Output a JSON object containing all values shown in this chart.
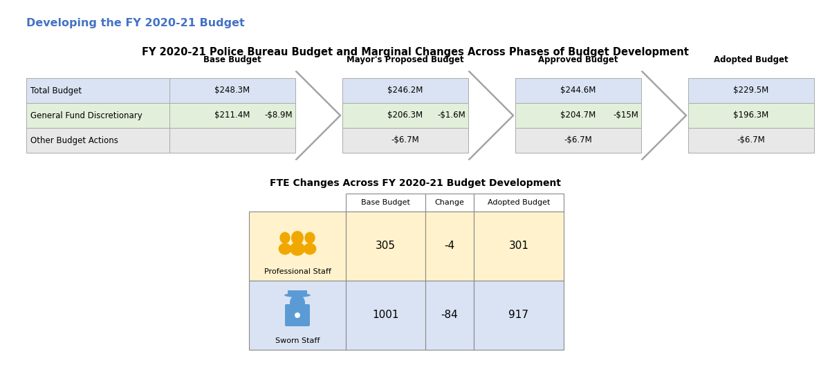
{
  "title": "Developing the FY 2020-21 Budget",
  "chart_title": "FY 2020-21 Police Bureau Budget and Marginal Changes Across Phases of Budget Development",
  "fte_title": "FTE Changes Across FY 2020-21 Budget Development",
  "title_color": "#4472C4",
  "background_color": "#FFFFFF",
  "phases": [
    {
      "label": "Base Budget",
      "total": "$248.3M",
      "general": "$211.4M",
      "other": ""
    },
    {
      "label": "Mayor's Proposed Budget",
      "total": "$246.2M",
      "general": "$206.3M",
      "other": "-$6.7M"
    },
    {
      "label": "Approved Budget",
      "total": "$244.6M",
      "general": "$204.7M",
      "other": "-$6.7M"
    },
    {
      "label": "Adopted Budget",
      "total": "$229.5M",
      "general": "$196.3M",
      "other": "-$6.7M"
    }
  ],
  "arrows": [
    {
      "label": "-$8.9M"
    },
    {
      "label": "-$1.6M"
    },
    {
      "label": "-$15M"
    }
  ],
  "row_labels": [
    "Total Budget",
    "General Fund Discretionary",
    "Other Budget Actions"
  ],
  "box_colors": {
    "total": "#DAE3F3",
    "general": "#E2EFDA",
    "other": "#E8E8E8"
  },
  "arrow_color": "#C0C0C0",
  "arrow_edge": "#999999",
  "fte_table": {
    "col_headers": [
      "Base Budget",
      "Change",
      "Adopted Budget"
    ],
    "rows": [
      {
        "label": "Professional Staff",
        "icon_color": "#F0A800",
        "row_color": "#FFF2CC",
        "values": [
          "305",
          "-4",
          "301"
        ]
      },
      {
        "label": "Sworn Staff",
        "icon_color": "#5B9BD5",
        "row_color": "#DAE3F3",
        "values": [
          "1001",
          "-84",
          "917"
        ]
      }
    ]
  }
}
